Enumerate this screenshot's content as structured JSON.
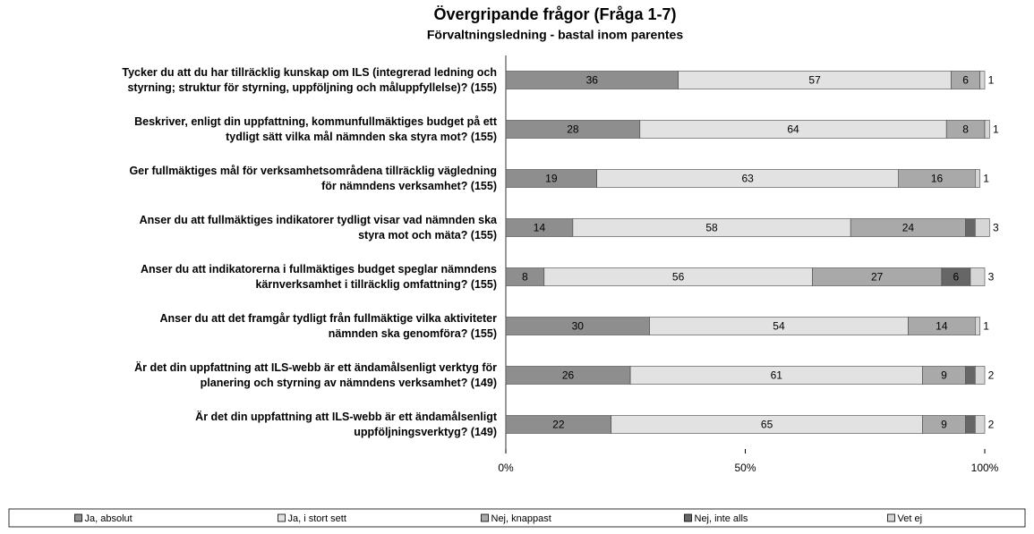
{
  "chart_data": {
    "type": "stacked_bar_horizontal",
    "title": "Övergripande frågor (Fråga 1-7)",
    "subtitle": "Förvaltningsledning - bastal inom parentes",
    "categories": [
      "Tycker du att du har tillräcklig kunskap om ILS (integrerad ledning och\nstyrning; struktur för styrning, uppföljning och måluppfyllelse)? (155)",
      "Beskriver, enligt din uppfattning, kommunfullmäktiges budget på ett\ntydligt sätt vilka mål nämnden ska styra mot? (155)",
      "Ger fullmäktiges mål för verksamhetsområdena tillräcklig vägledning\nför nämndens verksamhet? (155)",
      "Anser du att fullmäktiges indikatorer tydligt visar vad nämnden ska\nstyra mot och mäta? (155)",
      "Anser du att indikatorerna i fullmäktiges budget speglar nämndens\nkärnverksamhet i tillräcklig omfattning? (155)",
      "Anser du att det framgår tydligt från fullmäktige vilka aktiviteter\nnämnden ska genomföra? (155)",
      "Är det din uppfattning att ILS-webb är ett ändamålsenligt verktyg för\nplanering och styrning av nämndens verksamhet? (149)",
      "Är det din uppfattning att ILS-webb är ett ändamålsenligt\nuppföljningsverktyg? (149)"
    ],
    "series": [
      {
        "name": "Ja, absolut",
        "color": "#8e8e8e",
        "values": [
          36,
          28,
          19,
          14,
          8,
          30,
          26,
          22
        ]
      },
      {
        "name": "Ja, i stort sett",
        "color": "#e2e2e2",
        "values": [
          57,
          64,
          63,
          58,
          56,
          54,
          61,
          65
        ]
      },
      {
        "name": "Nej, knappast",
        "color": "#a9a9a9",
        "values": [
          6,
          8,
          16,
          24,
          27,
          14,
          9,
          9
        ]
      },
      {
        "name": "Nej, inte alls",
        "color": "#666666",
        "values": [
          null,
          null,
          null,
          2,
          6,
          null,
          2,
          2
        ]
      },
      {
        "name": "Vet ej",
        "color": "#d6d6d6",
        "values": [
          1,
          1,
          1,
          3,
          3,
          1,
          2,
          2
        ]
      }
    ],
    "xlim": [
      0,
      100
    ],
    "xticks": [
      {
        "value": 0,
        "label": "0%"
      },
      {
        "value": 50,
        "label": "50%"
      },
      {
        "value": 100,
        "label": "100%"
      }
    ]
  }
}
